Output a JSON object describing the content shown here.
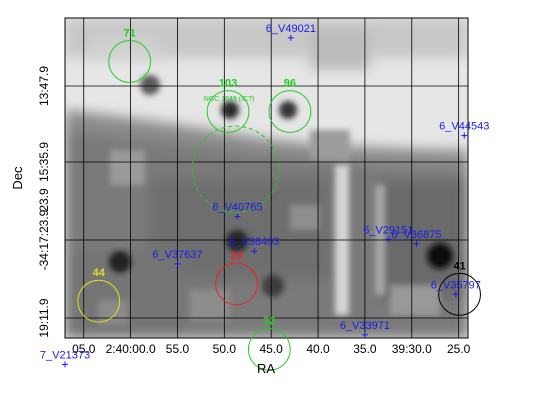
{
  "chart_data": {
    "type": "scatter",
    "title": "",
    "xlabel": "RA",
    "ylabel": "Dec",
    "x_tick_labels": [
      "05.0",
      "2:40:00.0",
      "55.0",
      "50.0",
      "45.0",
      "40.0",
      "35.0",
      "39:30.0",
      "25.0"
    ],
    "y_tick_labels": [
      "13:47.9",
      "15:35.9",
      "-34:17:23.9",
      "19:11.9"
    ],
    "y_tick_labels_extra": [
      "23.9"
    ],
    "ra_range_sec": [
      2407.0,
      2364.0
    ],
    "dec_range_arcsec": [
      -123557.0,
      -122853.4
    ],
    "circles": [
      {
        "label": "71",
        "color": "#22cc22",
        "ra_sec": 2400.1,
        "dec_arcsec": -122949.0,
        "radius_arcsec": 46,
        "dashed": false
      },
      {
        "label": "103",
        "color": "#22cc22",
        "ra_sec": 2389.6,
        "dec_arcsec": -123059.0,
        "radius_arcsec": 46,
        "dashed": false
      },
      {
        "label": "96",
        "color": "#22cc22",
        "ra_sec": 2383.0,
        "dec_arcsec": -123059.0,
        "radius_arcsec": 46,
        "dashed": false
      },
      {
        "label": "",
        "color": "#22cc22",
        "ra_sec": 2388.8,
        "dec_arcsec": -123186.0,
        "radius_arcsec": 95,
        "dashed": true
      },
      {
        "label": "23",
        "color": "#ee2222",
        "ra_sec": 2388.7,
        "dec_arcsec": -123438.0,
        "radius_arcsec": 46,
        "dashed": false
      },
      {
        "label": "44",
        "color": "#dddd22",
        "ra_sec": 2403.4,
        "dec_arcsec": -123476.0,
        "radius_arcsec": 46,
        "dashed": false
      },
      {
        "label": "32",
        "color": "#22cc22",
        "ra_sec": 2385.2,
        "dec_arcsec": -123582.0,
        "radius_arcsec": 46,
        "dashed": false
      },
      {
        "label": "41",
        "color": "#000000",
        "ra_sec": 2364.9,
        "dec_arcsec": -123461.0,
        "radius_arcsec": 46,
        "dashed": false
      }
    ],
    "sources": [
      {
        "label": "6_V49021",
        "ra_sec": 2382.9,
        "dec_arcsec": -122897.0
      },
      {
        "label": "6_V44543",
        "ra_sec": 2364.4,
        "dec_arcsec": -123112.0
      },
      {
        "label": "6_V40765",
        "ra_sec": 2388.6,
        "dec_arcsec": -123290.0
      },
      {
        "label": "6_V29151",
        "ra_sec": 2372.5,
        "dec_arcsec": -123340.0
      },
      {
        "label": "6_V36875",
        "ra_sec": 2369.5,
        "dec_arcsec": -123350.0
      },
      {
        "label": "6_V38403",
        "ra_sec": 2386.8,
        "dec_arcsec": -123366.0
      },
      {
        "label": "6_V37637",
        "ra_sec": 2395.0,
        "dec_arcsec": -123394.0
      },
      {
        "label": "6_V35797",
        "ra_sec": 2365.3,
        "dec_arcsec": -123461.0
      },
      {
        "label": "6_V33971",
        "ra_sec": 2375.0,
        "dec_arcsec": -123550.0
      },
      {
        "label": "7_V21373",
        "ra_sec": 2407.0,
        "dec_arcsec": -123615.0
      }
    ],
    "annotations": [
      {
        "text": "NGC 1049 (IC?)",
        "color": "#22cc22",
        "ra_sec": 2389.5,
        "dec_arcsec": -123036.0
      }
    ],
    "grid": true
  }
}
